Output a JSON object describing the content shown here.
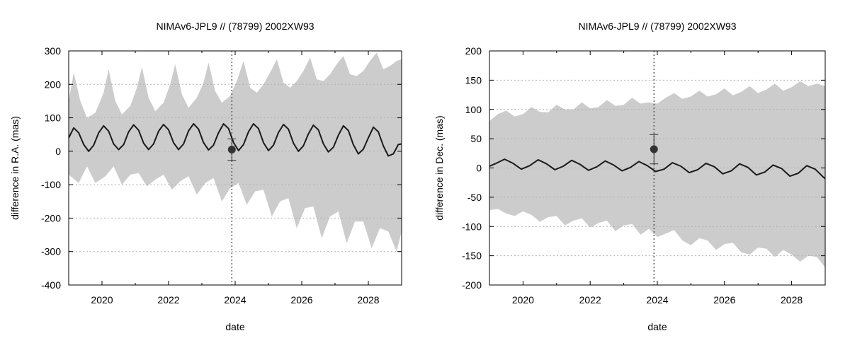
{
  "chart_data": [
    {
      "type": "line",
      "title": "NIMAv6-JPL9 // (78799) 2002XW93",
      "xlabel": "date",
      "ylabel": "difference in R.A. (mas)",
      "xlim": [
        2019.0,
        2029.0
      ],
      "ylim": [
        -400,
        300
      ],
      "xticks": [
        2020,
        2022,
        2024,
        2026,
        2028
      ],
      "yticks": [
        -400,
        -300,
        -200,
        -100,
        0,
        100,
        200,
        300
      ],
      "grid": "dotted",
      "vline_x": 2023.9,
      "curve": {
        "x": [
          2019.0,
          2019.15,
          2019.3,
          2019.45,
          2019.6,
          2019.75,
          2019.9,
          2020.05,
          2020.2,
          2020.35,
          2020.5,
          2020.65,
          2020.8,
          2020.95,
          2021.1,
          2021.25,
          2021.4,
          2021.55,
          2021.7,
          2021.85,
          2022.0,
          2022.15,
          2022.3,
          2022.45,
          2022.6,
          2022.75,
          2022.9,
          2023.05,
          2023.2,
          2023.35,
          2023.5,
          2023.65,
          2023.8,
          2023.95,
          2024.1,
          2024.25,
          2024.4,
          2024.55,
          2024.7,
          2024.85,
          2025.0,
          2025.15,
          2025.3,
          2025.45,
          2025.6,
          2025.75,
          2025.9,
          2026.05,
          2026.2,
          2026.35,
          2026.5,
          2026.65,
          2026.8,
          2026.95,
          2027.1,
          2027.25,
          2027.4,
          2027.55,
          2027.7,
          2027.85,
          2028.0,
          2028.15,
          2028.3,
          2028.45,
          2028.6,
          2028.75,
          2028.9,
          2029.0
        ],
        "y": [
          40,
          70,
          55,
          20,
          0,
          18,
          55,
          76,
          60,
          22,
          5,
          20,
          58,
          79,
          63,
          24,
          5,
          22,
          60,
          80,
          64,
          25,
          5,
          22,
          61,
          82,
          66,
          26,
          4,
          18,
          55,
          82,
          68,
          26,
          2,
          20,
          58,
          82,
          68,
          26,
          2,
          18,
          56,
          80,
          66,
          24,
          0,
          16,
          52,
          78,
          64,
          22,
          -2,
          12,
          48,
          76,
          62,
          20,
          -8,
          6,
          40,
          72,
          58,
          16,
          -14,
          -8,
          20,
          22
        ]
      },
      "band_upper": {
        "x": [
          2019.0,
          2019.15,
          2019.35,
          2019.55,
          2019.8,
          2020.05,
          2020.2,
          2020.4,
          2020.6,
          2020.85,
          2021.05,
          2021.2,
          2021.4,
          2021.6,
          2021.85,
          2022.05,
          2022.2,
          2022.4,
          2022.6,
          2022.85,
          2023.05,
          2023.2,
          2023.4,
          2023.6,
          2023.85,
          2024.05,
          2024.25,
          2024.45,
          2024.65,
          2024.85,
          2025.05,
          2025.25,
          2025.45,
          2025.65,
          2025.85,
          2026.05,
          2026.25,
          2026.45,
          2026.65,
          2026.85,
          2027.05,
          2027.25,
          2027.45,
          2027.65,
          2027.85,
          2028.05,
          2028.25,
          2028.45,
          2028.65,
          2028.85,
          2029.0
        ],
        "y": [
          150,
          235,
          150,
          100,
          115,
          175,
          245,
          150,
          110,
          135,
          190,
          252,
          160,
          120,
          145,
          200,
          260,
          170,
          130,
          160,
          205,
          265,
          180,
          145,
          165,
          210,
          270,
          190,
          175,
          200,
          235,
          275,
          205,
          190,
          210,
          240,
          280,
          215,
          210,
          230,
          260,
          285,
          230,
          225,
          240,
          270,
          295,
          245,
          255,
          270,
          275
        ]
      },
      "band_lower": {
        "x": [
          2019.0,
          2019.3,
          2019.55,
          2019.8,
          2020.1,
          2020.35,
          2020.6,
          2020.85,
          2021.1,
          2021.35,
          2021.6,
          2021.85,
          2022.1,
          2022.35,
          2022.6,
          2022.85,
          2023.1,
          2023.35,
          2023.6,
          2023.85,
          2024.1,
          2024.35,
          2024.6,
          2024.85,
          2025.1,
          2025.35,
          2025.6,
          2025.85,
          2026.1,
          2026.35,
          2026.6,
          2026.85,
          2027.1,
          2027.35,
          2027.6,
          2027.85,
          2028.1,
          2028.35,
          2028.6,
          2028.85,
          2029.0
        ],
        "y": [
          -70,
          -95,
          -45,
          -95,
          -75,
          -45,
          -100,
          -70,
          -65,
          -105,
          -85,
          -70,
          -115,
          -90,
          -75,
          -130,
          -95,
          -80,
          -150,
          -110,
          -95,
          -160,
          -120,
          -115,
          -195,
          -150,
          -140,
          -230,
          -170,
          -165,
          -260,
          -195,
          -180,
          -275,
          -210,
          -210,
          -290,
          -230,
          -240,
          -300,
          -240
        ]
      },
      "observation": {
        "x": 2023.9,
        "y": 5,
        "yerr": 32
      }
    },
    {
      "type": "line",
      "title": "NIMAv6-JPL9 // (78799) 2002XW93",
      "xlabel": "date",
      "ylabel": "difference in Dec. (mas)",
      "xlim": [
        2019.0,
        2029.0
      ],
      "ylim": [
        -200,
        200
      ],
      "xticks": [
        2020,
        2022,
        2024,
        2026,
        2028
      ],
      "yticks": [
        -200,
        -150,
        -100,
        -50,
        0,
        50,
        100,
        150,
        200
      ],
      "grid": "dotted",
      "vline_x": 2023.9,
      "curve": {
        "x": [
          2019.0,
          2019.2,
          2019.45,
          2019.7,
          2019.95,
          2020.2,
          2020.45,
          2020.7,
          2020.95,
          2021.2,
          2021.45,
          2021.7,
          2021.95,
          2022.2,
          2022.45,
          2022.7,
          2022.95,
          2023.2,
          2023.45,
          2023.7,
          2023.95,
          2024.2,
          2024.45,
          2024.7,
          2024.95,
          2025.2,
          2025.45,
          2025.7,
          2025.95,
          2026.2,
          2026.45,
          2026.7,
          2026.95,
          2027.2,
          2027.45,
          2027.7,
          2027.95,
          2028.2,
          2028.45,
          2028.7,
          2028.95,
          2029.0
        ],
        "y": [
          3,
          8,
          15,
          8,
          -2,
          4,
          14,
          7,
          -3,
          3,
          13,
          6,
          -4,
          2,
          12,
          5,
          -5,
          1,
          11,
          4,
          -6,
          -2,
          9,
          3,
          -8,
          -3,
          8,
          2,
          -10,
          -5,
          7,
          1,
          -12,
          -7,
          5,
          -1,
          -14,
          -9,
          4,
          -2,
          -16,
          -18
        ]
      },
      "band_upper": {
        "x": [
          2019.0,
          2019.25,
          2019.5,
          2019.75,
          2020.0,
          2020.25,
          2020.5,
          2020.75,
          2021.0,
          2021.25,
          2021.5,
          2021.75,
          2022.0,
          2022.25,
          2022.5,
          2022.75,
          2023.0,
          2023.25,
          2023.5,
          2023.75,
          2024.0,
          2024.25,
          2024.5,
          2024.75,
          2025.0,
          2025.25,
          2025.5,
          2025.75,
          2026.0,
          2026.25,
          2026.5,
          2026.75,
          2027.0,
          2027.25,
          2027.5,
          2027.75,
          2028.0,
          2028.25,
          2028.5,
          2028.75,
          2029.0
        ],
        "y": [
          80,
          92,
          98,
          88,
          92,
          104,
          96,
          95,
          108,
          100,
          100,
          112,
          102,
          104,
          116,
          106,
          108,
          120,
          110,
          112,
          110,
          120,
          128,
          118,
          122,
          132,
          122,
          126,
          136,
          124,
          130,
          140,
          128,
          134,
          144,
          132,
          138,
          148,
          140,
          144,
          140
        ]
      },
      "band_lower": {
        "x": [
          2019.0,
          2019.25,
          2019.5,
          2019.75,
          2020.0,
          2020.25,
          2020.5,
          2020.75,
          2021.0,
          2021.25,
          2021.5,
          2021.75,
          2022.0,
          2022.25,
          2022.5,
          2022.75,
          2023.0,
          2023.25,
          2023.5,
          2023.75,
          2024.0,
          2024.25,
          2024.5,
          2024.75,
          2025.0,
          2025.25,
          2025.5,
          2025.75,
          2026.0,
          2026.25,
          2026.5,
          2026.75,
          2027.0,
          2027.25,
          2027.5,
          2027.75,
          2028.0,
          2028.25,
          2028.5,
          2028.75,
          2029.0
        ],
        "y": [
          -72,
          -70,
          -78,
          -82,
          -74,
          -80,
          -92,
          -84,
          -82,
          -98,
          -90,
          -86,
          -102,
          -94,
          -90,
          -108,
          -98,
          -96,
          -114,
          -104,
          -118,
          -112,
          -106,
          -124,
          -132,
          -120,
          -124,
          -140,
          -130,
          -128,
          -144,
          -148,
          -136,
          -138,
          -152,
          -140,
          -148,
          -160,
          -150,
          -152,
          -170
        ]
      },
      "observation": {
        "x": 2023.9,
        "y": 32,
        "yerr": 25
      }
    }
  ],
  "colors": {
    "band": "#cccccc",
    "curve": "#1a1a1a",
    "grid": "#b0b0b0",
    "marker": "#333333"
  }
}
